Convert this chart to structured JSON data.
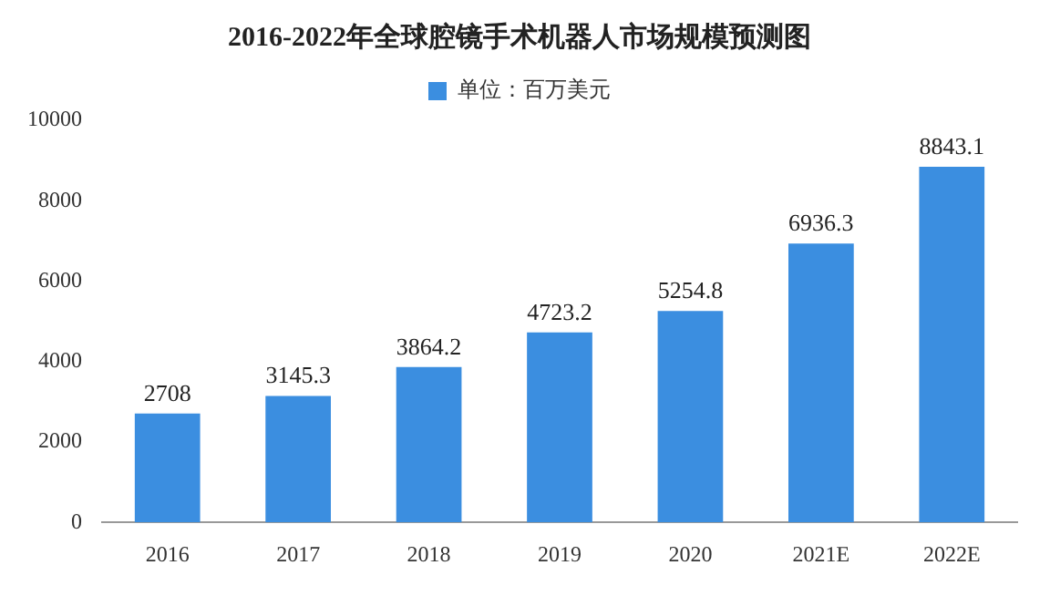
{
  "chart_data": {
    "type": "bar",
    "title": "2016-2022年全球腔镜手术机器人市场规模预测图",
    "categories": [
      "2016",
      "2017",
      "2018",
      "2019",
      "2020",
      "2021E",
      "2022E"
    ],
    "series": [
      {
        "name": "单位：百万美元",
        "color": "#3b8ee0",
        "values": [
          2708,
          3145.3,
          3864.2,
          4723.2,
          5254.8,
          6936.3,
          8843.1
        ]
      }
    ],
    "ylim": [
      0,
      10000
    ],
    "yticks": [
      0,
      2000,
      4000,
      6000,
      8000,
      10000
    ],
    "grid": false,
    "legend": "top",
    "data_labels": true
  }
}
